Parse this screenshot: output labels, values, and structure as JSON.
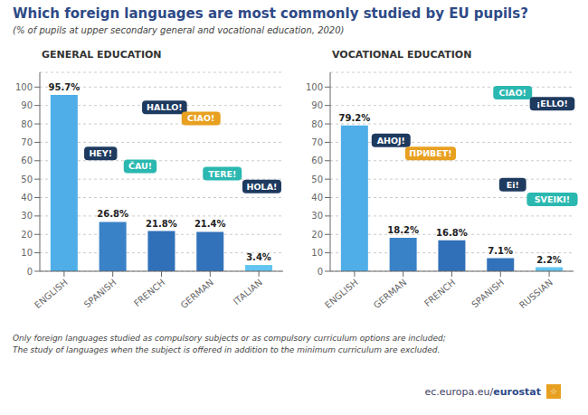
{
  "title": "Which foreign languages are most commonly studied by EU pupils?",
  "subtitle": "(% of pupils at upper secondary general and vocational education, 2020)",
  "footnotes": [
    "Only foreign languages studied as compulsory subjects or as compulsory curriculum options are included;",
    "The study of languages when the subject is offered in addition to the minimum curriculum are excluded."
  ],
  "credits": [
    {
      "text": "ec.europa.eu/"
    },
    {
      "text": "eurostat"
    },
    {
      "text": "☆",
      "color": "#e8a020"
    }
  ],
  "chart_data": [
    {
      "type": "bar",
      "title": "GENERAL EDUCATION",
      "categories": [
        "ENGLISH",
        "SPANISH",
        "FRENCH",
        "GERMAN",
        "ITALIAN"
      ],
      "values": [
        95.7,
        26.8,
        21.8,
        21.4,
        3.4
      ],
      "value_labels": [
        "95.7%",
        "26.8%",
        "21.8%",
        "21.4%",
        "3.4%"
      ],
      "colors": [
        "#4faee8",
        "#3a82c8",
        "#3070b8",
        "#3272ba",
        "#62c4f0"
      ],
      "ylim": [
        0,
        108
      ],
      "yticks": [
        0,
        10,
        20,
        30,
        40,
        50,
        60,
        70,
        80,
        90,
        100
      ],
      "grid": true,
      "data_labels": true,
      "annotations": [
        {
          "text": "HALLO!",
          "x": 2.05,
          "y": 89,
          "color": "#1e3a5f"
        },
        {
          "text": "CIAO!",
          "x": 2.65,
          "y": 83,
          "color": "#e8a020"
        },
        {
          "text": "HEY!",
          "x": 1.0,
          "y": 64,
          "color": "#1e3a5f"
        },
        {
          "text": "ČAU!",
          "x": 1.65,
          "y": 57,
          "color": "#2ab8b0"
        },
        {
          "text": "TERE!",
          "x": 3.0,
          "y": 53,
          "color": "#2ab8b0"
        },
        {
          "text": "HOLA!",
          "x": 3.65,
          "y": 46,
          "color": "#1e3a5f"
        }
      ]
    },
    {
      "type": "bar",
      "title": "VOCATIONAL EDUCATION",
      "categories": [
        "ENGLISH",
        "GERMAN",
        "FRENCH",
        "SPANISH",
        "RUSSIAN"
      ],
      "values": [
        79.2,
        18.2,
        16.8,
        7.1,
        2.2
      ],
      "value_labels": [
        "79.2%",
        "18.2%",
        "16.8%",
        "7.1%",
        "2.2%"
      ],
      "colors": [
        "#4faee8",
        "#3a82c8",
        "#3070b8",
        "#3272ba",
        "#62c4f0"
      ],
      "ylim": [
        0,
        108
      ],
      "yticks": [
        0,
        10,
        20,
        30,
        40,
        50,
        60,
        70,
        80,
        90,
        100
      ],
      "grid": true,
      "data_labels": true,
      "annotations": [
        {
          "text": "CIAO!",
          "x": 3.0,
          "y": 97,
          "color": "#2ab8b0"
        },
        {
          "text": "¡ELLO!",
          "x": 3.65,
          "y": 91,
          "color": "#1e3a5f"
        },
        {
          "text": "AHOJ!",
          "x": 1.0,
          "y": 71,
          "color": "#1e3a5f"
        },
        {
          "text": "ПРИВЕТ!",
          "x": 1.65,
          "y": 64,
          "color": "#e8a020"
        },
        {
          "text": "Ei!",
          "x": 3.0,
          "y": 47,
          "color": "#1e3a5f"
        },
        {
          "text": "SVEIKI!",
          "x": 3.65,
          "y": 39,
          "color": "#2ab8b0"
        }
      ]
    }
  ]
}
